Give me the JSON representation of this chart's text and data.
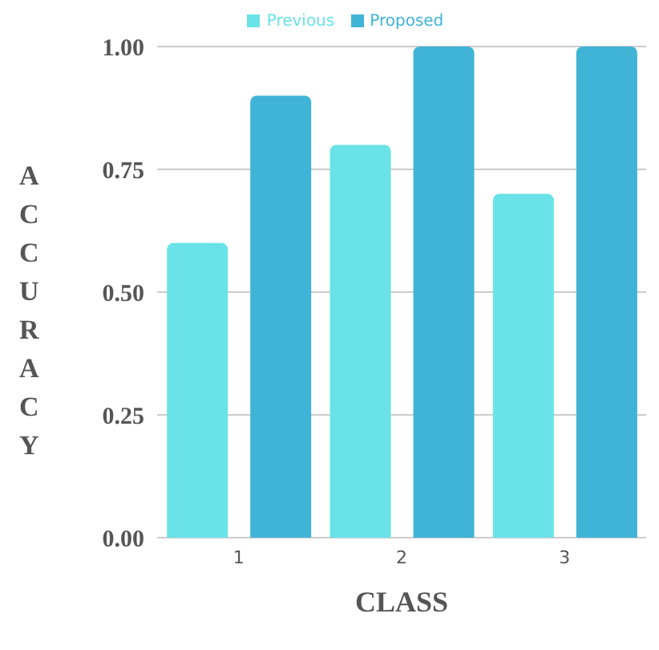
{
  "chart_data": {
    "type": "bar",
    "xlabel": "CLASS",
    "ylabel": "ACCURACY",
    "categories": [
      "1",
      "2",
      "3"
    ],
    "series": [
      {
        "name": "Previous",
        "color": "#6ae3e8",
        "values": [
          0.6,
          0.8,
          0.7
        ]
      },
      {
        "name": "Proposed",
        "color": "#40b4d6",
        "values": [
          0.9,
          1.0,
          1.0
        ]
      }
    ],
    "ylim": [
      0,
      1
    ],
    "yticks": [
      {
        "value": 0,
        "label": "0.00"
      },
      {
        "value": 0.25,
        "label": "0.25"
      },
      {
        "value": 0.5,
        "label": "0.50"
      },
      {
        "value": 0.75,
        "label": "0.75"
      },
      {
        "value": 1,
        "label": "1.00"
      }
    ],
    "grid": "y",
    "legend": "top"
  }
}
